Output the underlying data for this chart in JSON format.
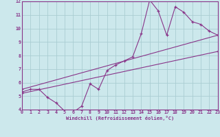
{
  "background_color": "#cce8ec",
  "grid_color": "#aacdd2",
  "line_color": "#883388",
  "x_label": "Windchill (Refroidissement éolien,°C)",
  "xlim": [
    0,
    23
  ],
  "ylim": [
    4,
    12
  ],
  "x_ticks": [
    0,
    1,
    2,
    3,
    4,
    5,
    6,
    7,
    8,
    9,
    10,
    11,
    12,
    13,
    14,
    15,
    16,
    17,
    18,
    19,
    20,
    21,
    22,
    23
  ],
  "y_ticks": [
    4,
    5,
    6,
    7,
    8,
    9,
    10,
    11,
    12
  ],
  "line1_x": [
    0,
    1,
    2,
    3,
    4,
    5,
    6,
    7,
    8,
    9,
    10,
    11,
    12,
    13,
    14,
    15,
    16,
    17,
    18,
    19,
    20,
    21,
    22,
    23
  ],
  "line1_y": [
    5.3,
    5.5,
    5.5,
    4.9,
    4.5,
    3.9,
    3.8,
    4.25,
    5.9,
    5.5,
    6.9,
    7.3,
    7.6,
    7.9,
    9.6,
    12.1,
    11.3,
    9.5,
    11.6,
    11.2,
    10.5,
    10.3,
    9.8,
    9.5
  ],
  "line2_x": [
    0,
    23
  ],
  "line2_y": [
    5.5,
    9.5
  ],
  "line3_x": [
    0,
    23
  ],
  "line3_y": [
    5.2,
    8.3
  ]
}
